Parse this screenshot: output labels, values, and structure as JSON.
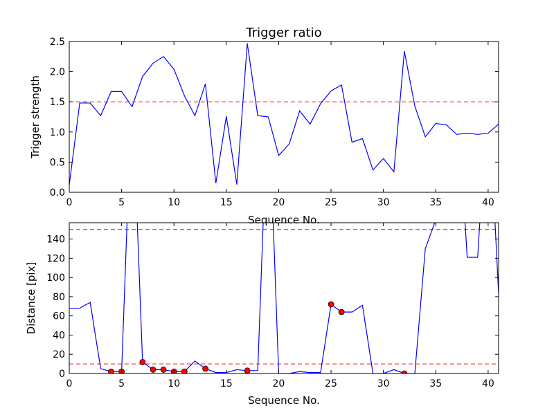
{
  "chart_data": [
    {
      "type": "line",
      "title": "Trigger ratio",
      "xlabel": "Sequence No.",
      "ylabel": "Trigger strength",
      "xlim": [
        0,
        41
      ],
      "ylim": [
        0,
        2.5
      ],
      "xticks": [
        0,
        5,
        10,
        15,
        20,
        25,
        30,
        35,
        40
      ],
      "yticks": [
        0.0,
        0.5,
        1.0,
        1.5,
        2.0,
        2.5
      ],
      "ytick_labels": [
        "0.0",
        "0.5",
        "1.0",
        "1.5",
        "2.0",
        "2.5"
      ],
      "grid": false,
      "threshold": 1.5,
      "colors": {
        "line": "#0000ff",
        "threshold": "#ff0000"
      },
      "x": [
        0,
        1,
        2,
        3,
        4,
        5,
        6,
        7,
        8,
        9,
        10,
        11,
        12,
        13,
        14,
        15,
        16,
        17,
        18,
        19,
        20,
        21,
        22,
        23,
        24,
        25,
        26,
        27,
        28,
        29,
        30,
        31,
        32,
        33,
        34,
        35,
        36,
        37,
        38,
        39,
        40,
        41
      ],
      "values": [
        0.12,
        1.48,
        1.48,
        1.27,
        1.67,
        1.67,
        1.42,
        1.92,
        2.14,
        2.25,
        2.04,
        1.6,
        1.27,
        1.8,
        0.15,
        1.26,
        0.13,
        2.47,
        1.27,
        1.25,
        0.61,
        0.8,
        1.35,
        1.13,
        1.47,
        1.68,
        1.78,
        0.83,
        0.89,
        0.37,
        0.56,
        0.34,
        2.34,
        1.43,
        0.92,
        1.14,
        1.12,
        0.96,
        0.98,
        0.96,
        0.98,
        1.13
      ]
    },
    {
      "type": "line",
      "xlabel": "Sequence No.",
      "ylabel": "Distance [pix]",
      "xlim": [
        0,
        41
      ],
      "ylim": [
        0,
        157
      ],
      "xticks": [
        0,
        5,
        10,
        15,
        20,
        25,
        30,
        35,
        40
      ],
      "yticks": [
        0,
        20,
        40,
        60,
        80,
        100,
        120,
        140
      ],
      "grid": false,
      "thresholds": [
        150,
        10
      ],
      "colors": {
        "line": "#0000ff",
        "threshold": "#ff0000",
        "marker": "#ff0000"
      },
      "x": [
        0,
        1,
        2,
        3,
        4,
        5,
        6,
        7,
        8,
        9,
        10,
        11,
        12,
        13,
        14,
        15,
        16,
        17,
        18,
        19,
        20,
        21,
        22,
        23,
        24,
        25,
        26,
        27,
        28,
        29,
        30,
        31,
        32,
        33,
        34,
        35,
        36,
        37,
        38,
        39,
        40,
        41
      ],
      "values": [
        68,
        68,
        74,
        5,
        2,
        2,
        300,
        12,
        4,
        4,
        2,
        2,
        13,
        5,
        1,
        1,
        4,
        3,
        3,
        300,
        0,
        0,
        2,
        1,
        1,
        72,
        64,
        64,
        71,
        0,
        0,
        4,
        0,
        0,
        130,
        160,
        300,
        300,
        121,
        121,
        300,
        83
      ],
      "markers": {
        "x": [
          4,
          5,
          7,
          8,
          9,
          10,
          11,
          13,
          17,
          25,
          26,
          32
        ],
        "values": [
          2,
          2,
          12,
          4,
          4,
          2,
          2,
          5,
          3,
          72,
          64,
          0
        ]
      }
    }
  ]
}
